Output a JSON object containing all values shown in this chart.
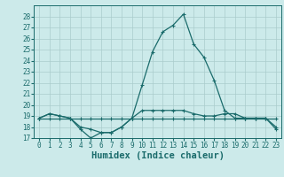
{
  "xlabel": "Humidex (Indice chaleur)",
  "x_values": [
    0,
    1,
    2,
    3,
    4,
    5,
    6,
    7,
    8,
    9,
    10,
    11,
    12,
    13,
    14,
    15,
    16,
    17,
    18,
    19,
    20,
    21,
    22,
    23
  ],
  "line1": [
    18.8,
    19.2,
    19.0,
    18.8,
    17.8,
    17.0,
    17.5,
    17.5,
    18.0,
    18.8,
    21.8,
    24.8,
    26.6,
    27.2,
    28.2,
    25.5,
    24.3,
    22.2,
    19.5,
    18.8,
    18.8,
    18.8,
    18.8,
    17.8
  ],
  "line2": [
    18.8,
    19.2,
    19.0,
    18.8,
    18.0,
    17.8,
    17.5,
    17.5,
    18.0,
    18.8,
    19.5,
    19.5,
    19.5,
    19.5,
    19.5,
    19.2,
    19.0,
    19.0,
    19.2,
    19.2,
    18.8,
    18.8,
    18.8,
    18.0
  ],
  "line3": [
    18.8,
    18.8,
    18.8,
    18.8,
    18.8,
    18.8,
    18.8,
    18.8,
    18.8,
    18.8,
    18.8,
    18.8,
    18.8,
    18.8,
    18.8,
    18.8,
    18.8,
    18.8,
    18.8,
    18.8,
    18.8,
    18.8,
    18.8,
    18.8
  ],
  "line_color": "#1a6b6b",
  "bg_color": "#cceaea",
  "grid_color": "#aacccc",
  "ylim": [
    17,
    29
  ],
  "yticks": [
    17,
    18,
    19,
    20,
    21,
    22,
    23,
    24,
    25,
    26,
    27,
    28
  ],
  "xlim": [
    -0.5,
    23.5
  ],
  "tick_fontsize": 5.5,
  "label_fontsize": 7.5
}
